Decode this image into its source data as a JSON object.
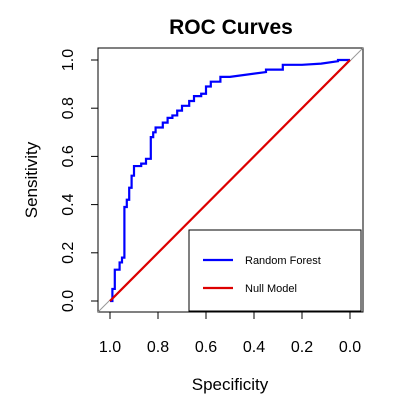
{
  "chart_data": {
    "type": "line",
    "title": "ROC Curves",
    "xlabel": "Specificity",
    "ylabel": "Sensitivity",
    "xlim": [
      1.0,
      0.0
    ],
    "ylim": [
      0.0,
      1.0
    ],
    "x_reversed": true,
    "grid": false,
    "legend_position": "bottom-right",
    "x_ticks": [
      {
        "value": 1.0,
        "label": "1.0"
      },
      {
        "value": 0.8,
        "label": "0.8"
      },
      {
        "value": 0.6,
        "label": "0.6"
      },
      {
        "value": 0.4,
        "label": "0.4"
      },
      {
        "value": 0.2,
        "label": "0.2"
      },
      {
        "value": 0.0,
        "label": "0.0"
      }
    ],
    "y_ticks": [
      {
        "value": 0.0,
        "label": "0.0"
      },
      {
        "value": 0.2,
        "label": "0.2"
      },
      {
        "value": 0.4,
        "label": "0.4"
      },
      {
        "value": 0.6,
        "label": "0.6"
      },
      {
        "value": 0.8,
        "label": "0.8"
      },
      {
        "value": 1.0,
        "label": "1.0"
      }
    ],
    "reference_line": {
      "from": [
        1.0,
        0.0
      ],
      "to": [
        0.0,
        1.0
      ],
      "color": "#999999"
    },
    "series": [
      {
        "name": "Random Forest",
        "color": "#0000ff",
        "x": [
          1.0,
          0.99,
          0.99,
          0.98,
          0.98,
          0.96,
          0.96,
          0.95,
          0.95,
          0.94,
          0.94,
          0.93,
          0.93,
          0.92,
          0.92,
          0.91,
          0.91,
          0.9,
          0.9,
          0.87,
          0.87,
          0.85,
          0.85,
          0.83,
          0.83,
          0.82,
          0.82,
          0.81,
          0.81,
          0.78,
          0.78,
          0.76,
          0.76,
          0.74,
          0.74,
          0.72,
          0.72,
          0.7,
          0.7,
          0.67,
          0.67,
          0.65,
          0.65,
          0.62,
          0.62,
          0.6,
          0.6,
          0.58,
          0.58,
          0.54,
          0.54,
          0.5,
          0.35,
          0.35,
          0.3,
          0.28,
          0.28,
          0.2,
          0.12,
          0.05,
          0.05,
          0.0
        ],
        "y": [
          0.0,
          0.0,
          0.05,
          0.05,
          0.13,
          0.13,
          0.16,
          0.16,
          0.18,
          0.18,
          0.39,
          0.39,
          0.42,
          0.42,
          0.47,
          0.47,
          0.52,
          0.52,
          0.56,
          0.56,
          0.57,
          0.57,
          0.59,
          0.59,
          0.68,
          0.68,
          0.7,
          0.7,
          0.72,
          0.72,
          0.74,
          0.74,
          0.76,
          0.76,
          0.77,
          0.77,
          0.79,
          0.79,
          0.81,
          0.81,
          0.83,
          0.83,
          0.85,
          0.85,
          0.86,
          0.86,
          0.89,
          0.89,
          0.91,
          0.91,
          0.93,
          0.93,
          0.95,
          0.96,
          0.96,
          0.96,
          0.98,
          0.98,
          0.985,
          0.995,
          1.0,
          1.0
        ]
      },
      {
        "name": "Null Model",
        "color": "#dd0000",
        "x": [
          1.0,
          0.0
        ],
        "y": [
          0.0,
          1.0
        ]
      }
    ]
  }
}
